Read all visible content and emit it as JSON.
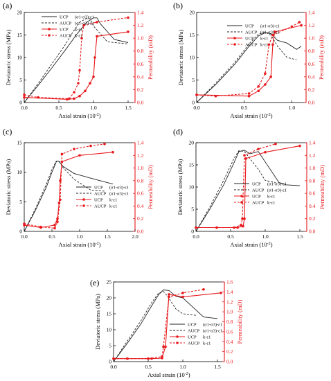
{
  "panels": [
    {
      "label": "(a)",
      "xlabel": "Axial strain",
      "xunit": "(10",
      "xunit_exp": "-2",
      "ylabel_left": "Deviatoric stress  (MPa)",
      "ylabel_right": "Permeability  (mD)",
      "legend_pos": "top-left"
    },
    {
      "label": "(b)",
      "xlabel": "Axial strain",
      "xunit": "(10",
      "xunit_exp": "-2",
      "ylabel_left": "Deviatoric stress  (MPa)",
      "ylabel_right": "Permeability  (mD)",
      "legend_pos": "bottom-right"
    },
    {
      "label": "(c)",
      "xlabel": "Axial strain",
      "xunit": "(10",
      "xunit_exp": "-2",
      "ylabel_left": "Deviatoric stress  (MPa)",
      "ylabel_right": "Permeability  (mD)",
      "legend_pos": "bottom-right"
    },
    {
      "label": "(d)",
      "xlabel": "Axial strain",
      "xunit": "(10",
      "xunit_exp": "-2",
      "ylabel_left": "Deviatoric stress  (MPa)",
      "ylabel_right": "Permeability  (mD)",
      "legend_pos": "bottom-right"
    },
    {
      "label": "(e)",
      "xlabel": "Axial strain",
      "xunit": "(10",
      "xunit_exp": "-2",
      "ylabel_left": "Deviatoric stress  (MPa)",
      "ylabel_right": "Permeability  (mD)",
      "legend_pos": "bottom-right"
    }
  ],
  "legend_entries": [
    {
      "series": "UCP",
      "curve": "(σ1-σ3)-ε1",
      "color": "#222222",
      "style": "solid",
      "marker": "none"
    },
    {
      "series": "AUCP",
      "curve": "(σ1-σ3)-ε1",
      "color": "#222222",
      "style": "dashed",
      "marker": "none"
    },
    {
      "series": "UCP",
      "curve": "k-ε1",
      "color": "#e8191c",
      "style": "solid",
      "marker": "circle"
    },
    {
      "series": "AUCP",
      "curve": "k-ε1",
      "color": "#e8191c",
      "style": "dashed",
      "marker": "circle"
    }
  ],
  "colors": {
    "stress": "#222222",
    "permeability": "#e8191c",
    "axis": "#000000"
  },
  "chart_data": [
    {
      "type": "line",
      "title": "(a)",
      "xlim": [
        0,
        1.6
      ],
      "xticks": [
        0.0,
        0.5,
        1.0,
        1.5
      ],
      "ylim_left": [
        0,
        20
      ],
      "yticks_left": [
        0,
        5,
        10,
        15,
        20
      ],
      "ylim_right": [
        0,
        1.4
      ],
      "yticks_right": [
        0.0,
        0.2,
        0.4,
        0.6,
        0.8,
        1.0,
        1.2,
        1.4
      ],
      "series": [
        {
          "name": "UCP (σ1-σ3)-ε1",
          "axis": "left",
          "x": [
            0,
            0.2,
            0.4,
            0.6,
            0.75,
            0.9,
            1.0,
            1.05,
            1.1,
            1.3,
            1.5
          ],
          "y": [
            0,
            3.8,
            7.7,
            11.8,
            15.0,
            17.8,
            18.8,
            18.8,
            17.5,
            14.0,
            13.3
          ]
        },
        {
          "name": "AUCP (σ1-σ3)-ε1",
          "axis": "left",
          "x": [
            0,
            0.2,
            0.4,
            0.6,
            0.7,
            0.8,
            0.9,
            0.95,
            1.0,
            1.2,
            1.5
          ],
          "y": [
            0,
            4.2,
            8.6,
            13.0,
            15.6,
            17.8,
            18.7,
            18.6,
            17.0,
            13.5,
            13.0
          ]
        },
        {
          "name": "UCP k-ε1",
          "axis": "right",
          "x": [
            0.0,
            0.62,
            0.72,
            0.8,
            0.88,
            0.95,
            1.0,
            1.02,
            1.05,
            1.5
          ],
          "y": [
            0.08,
            0.05,
            0.06,
            0.1,
            0.18,
            0.3,
            0.4,
            0.7,
            1.03,
            1.1
          ]
        },
        {
          "name": "AUCP k-ε1",
          "axis": "right",
          "x": [
            0.0,
            0.2,
            0.65,
            0.72,
            0.78,
            0.8,
            0.83,
            0.86,
            1.05,
            1.5
          ],
          "y": [
            0.12,
            0.08,
            0.06,
            0.16,
            0.3,
            0.5,
            1.0,
            1.2,
            1.25,
            1.32
          ]
        }
      ]
    },
    {
      "type": "line",
      "title": "(b)",
      "xlim": [
        0,
        1.15
      ],
      "xticks": [
        0.0,
        0.5,
        1.0
      ],
      "ylim_left": [
        0,
        20
      ],
      "yticks_left": [
        0,
        5,
        10,
        15,
        20
      ],
      "ylim_right": [
        0,
        1.4
      ],
      "yticks_right": [
        0.0,
        0.2,
        0.4,
        0.6,
        0.8,
        1.0,
        1.2,
        1.4
      ],
      "series": [
        {
          "name": "UCP (σ1-σ3)-ε1",
          "axis": "left",
          "x": [
            0,
            0.2,
            0.4,
            0.55,
            0.65,
            0.72,
            0.78,
            0.85,
            0.95,
            1.05,
            1.1
          ],
          "y": [
            0,
            4.0,
            8.5,
            12.5,
            14.8,
            15.5,
            15.3,
            13.8,
            13.2,
            11.8,
            12.5
          ]
        },
        {
          "name": "AUCP (σ1-σ3)-ε1",
          "axis": "left",
          "x": [
            0,
            0.2,
            0.4,
            0.55,
            0.65,
            0.72,
            0.78,
            0.85,
            0.95,
            1.05
          ],
          "y": [
            0,
            4.3,
            8.9,
            13.0,
            15.2,
            15.6,
            15.0,
            12.5,
            10.0,
            9.5
          ]
        },
        {
          "name": "UCP k-ε1",
          "axis": "right",
          "x": [
            0.0,
            0.55,
            0.65,
            0.72,
            0.78,
            0.8,
            0.82,
            1.1
          ],
          "y": [
            0.12,
            0.1,
            0.18,
            0.28,
            0.4,
            0.9,
            1.1,
            1.2
          ]
        },
        {
          "name": "AUCP k-ε1",
          "axis": "right",
          "x": [
            0.0,
            0.2,
            0.55,
            0.65,
            0.72,
            0.76,
            0.8,
            1.0,
            1.08
          ],
          "y": [
            0.12,
            0.1,
            0.14,
            0.25,
            0.45,
            0.9,
            1.05,
            1.18,
            1.25
          ]
        }
      ]
    },
    {
      "type": "line",
      "title": "(c)",
      "xlim": [
        0,
        2.0
      ],
      "xticks": [
        0.0,
        0.5,
        1.0,
        1.5,
        2.0
      ],
      "ylim_left": [
        0,
        15
      ],
      "yticks_left": [
        0,
        5,
        10,
        15
      ],
      "ylim_right": [
        0,
        1.4
      ],
      "yticks_right": [
        0.0,
        0.2,
        0.4,
        0.6,
        0.8,
        1.0,
        1.2,
        1.4
      ],
      "series": [
        {
          "name": "UCP (σ1-σ3)-ε1",
          "axis": "left",
          "x": [
            0,
            0.2,
            0.4,
            0.5,
            0.58,
            0.62,
            0.7,
            0.9,
            1.2,
            1.6
          ],
          "y": [
            0,
            3.5,
            7.5,
            10.0,
            11.8,
            11.9,
            11.0,
            9.8,
            9.0,
            8.0
          ]
        },
        {
          "name": "AUCP (σ1-σ3)-ε1",
          "axis": "left",
          "x": [
            0,
            0.2,
            0.4,
            0.5,
            0.58,
            0.64,
            0.7,
            0.9,
            1.2,
            1.45
          ],
          "y": [
            0,
            3.8,
            8.0,
            10.5,
            11.9,
            11.8,
            10.8,
            8.8,
            7.0,
            6.8
          ]
        },
        {
          "name": "UCP k-ε1",
          "axis": "right",
          "x": [
            0.0,
            0.3,
            0.55,
            0.6,
            0.63,
            0.65,
            0.68,
            1.0,
            1.6
          ],
          "y": [
            0.1,
            0.06,
            0.1,
            0.2,
            0.45,
            0.8,
            1.1,
            1.2,
            1.25
          ]
        },
        {
          "name": "AUCP k-ε1",
          "axis": "right",
          "x": [
            0.0,
            0.3,
            0.55,
            0.6,
            0.65,
            0.68,
            0.9,
            1.2,
            1.45
          ],
          "y": [
            0.12,
            0.07,
            0.05,
            0.15,
            0.5,
            1.22,
            1.3,
            1.35,
            1.38
          ]
        }
      ]
    },
    {
      "type": "line",
      "title": "(d)",
      "xlim": [
        0,
        1.6
      ],
      "xticks": [
        0.0,
        0.5,
        1.0,
        1.5
      ],
      "ylim_left": [
        0,
        20
      ],
      "yticks_left": [
        0,
        5,
        10,
        15,
        20
      ],
      "ylim_right": [
        0,
        1.4
      ],
      "yticks_right": [
        0.0,
        0.2,
        0.4,
        0.6,
        0.8,
        1.0,
        1.2,
        1.4
      ],
      "series": [
        {
          "name": "UCP (σ1-σ3)-ε1",
          "axis": "left",
          "x": [
            0,
            0.2,
            0.4,
            0.55,
            0.62,
            0.7,
            0.78,
            0.9,
            1.2,
            1.3,
            1.5
          ],
          "y": [
            0,
            5.0,
            10.5,
            15.5,
            18.0,
            18.3,
            17.5,
            18.0,
            11.0,
            10.5,
            10.3
          ]
        },
        {
          "name": "AUCP (σ1-σ3)-ε1",
          "axis": "left",
          "x": [
            0,
            0.2,
            0.4,
            0.55,
            0.62,
            0.7,
            0.8,
            0.9,
            1.0,
            1.15
          ],
          "y": [
            0,
            5.5,
            11.5,
            16.5,
            18.2,
            18.0,
            16.0,
            14.0,
            11.5,
            11.0
          ]
        },
        {
          "name": "UCP k-ε1",
          "axis": "right",
          "x": [
            0.0,
            0.3,
            0.6,
            0.68,
            0.7,
            0.72,
            1.0,
            1.5
          ],
          "y": [
            0.06,
            0.06,
            0.06,
            0.08,
            0.2,
            1.15,
            1.25,
            1.35
          ]
        },
        {
          "name": "AUCP k-ε1",
          "axis": "right",
          "x": [
            0.0,
            0.3,
            0.55,
            0.65,
            0.67,
            0.7,
            0.9,
            1.15
          ],
          "y": [
            0.06,
            0.06,
            0.06,
            0.1,
            0.2,
            1.2,
            1.3,
            1.38
          ]
        }
      ]
    },
    {
      "type": "line",
      "title": "(e)",
      "xlim": [
        0,
        1.6
      ],
      "xticks": [
        0.0,
        0.5,
        1.0,
        1.5
      ],
      "ylim_left": [
        0,
        25
      ],
      "yticks_left": [
        0,
        5,
        10,
        15,
        20,
        25
      ],
      "ylim_right": [
        0,
        1.6
      ],
      "yticks_right": [
        0.0,
        0.2,
        0.4,
        0.6,
        0.8,
        1.0,
        1.2,
        1.4,
        1.6
      ],
      "series": [
        {
          "name": "UCP (σ1-σ3)-ε1",
          "axis": "left",
          "x": [
            0,
            0.2,
            0.4,
            0.55,
            0.65,
            0.72,
            0.8,
            0.9,
            1.0,
            1.2,
            1.3,
            1.5
          ],
          "y": [
            0,
            5.8,
            12.0,
            17.5,
            21.0,
            22.5,
            22.3,
            20.5,
            20.0,
            16.0,
            14.0,
            13.5
          ]
        },
        {
          "name": "AUCP (σ1-σ3)-ε1",
          "axis": "left",
          "x": [
            0,
            0.2,
            0.4,
            0.55,
            0.65,
            0.72,
            0.78,
            0.9,
            1.0,
            1.2
          ],
          "y": [
            0,
            6.5,
            13.0,
            18.5,
            21.5,
            22.0,
            20.5,
            16.5,
            15.0,
            14.5
          ]
        },
        {
          "name": "UCP k-ε1",
          "axis": "right",
          "x": [
            0.0,
            0.2,
            0.55,
            0.7,
            0.75,
            0.8,
            1.0,
            1.55
          ],
          "y": [
            0.06,
            0.06,
            0.06,
            0.07,
            0.3,
            1.35,
            1.3,
            1.38
          ]
        },
        {
          "name": "AUCP k-ε1",
          "axis": "right",
          "x": [
            0.0,
            0.2,
            0.5,
            0.7,
            0.72,
            0.8,
            1.0,
            1.3
          ],
          "y": [
            0.06,
            0.06,
            0.06,
            0.1,
            0.3,
            1.3,
            1.38,
            1.45
          ]
        }
      ]
    }
  ]
}
